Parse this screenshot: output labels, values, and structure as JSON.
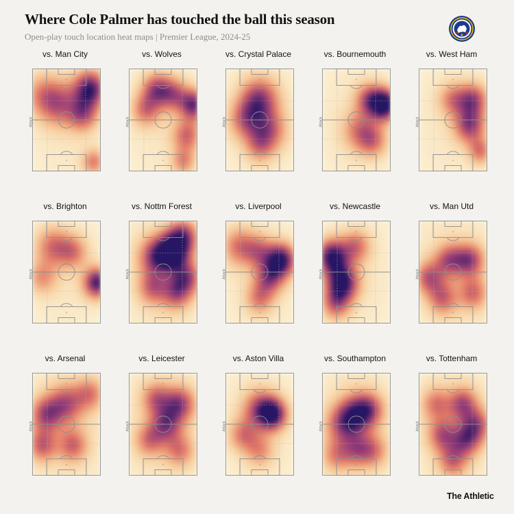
{
  "header": {
    "title": "Where Cole Palmer has touched the ball this season",
    "subtitle": "Open-play touch location heat maps | Premier League, 2024-25"
  },
  "brand": "The Athletic",
  "attack_label": "Attack",
  "colors": {
    "background": "#f3f2ee",
    "scale_low": "#f8e9a8",
    "scale_mid": "#e8876a",
    "scale_high": "#2a1668"
  },
  "crest_icon": "chelsea-crest-icon",
  "chart_data": {
    "type": "heatmap",
    "title": "Where Cole Palmer has touched the ball this season",
    "subtitle": "Open-play touch location heat maps | Premier League, 2024-25",
    "x_range": [
      0,
      1
    ],
    "y_range": [
      0,
      1
    ],
    "maps": [
      {
        "opponent": "vs. Man City",
        "blobs": [
          [
            0.5,
            0.5,
            0.55,
            0.6,
            0.15
          ],
          [
            0.85,
            0.2,
            0.17,
            0.85
          ],
          [
            0.4,
            0.35,
            0.2,
            0.45
          ],
          [
            0.75,
            0.45,
            0.15,
            0.5
          ],
          [
            0.9,
            0.9,
            0.12,
            0.45
          ],
          [
            0.15,
            0.25,
            0.2,
            0.35
          ]
        ]
      },
      {
        "opponent": "vs. Wolves",
        "blobs": [
          [
            0.5,
            0.5,
            0.55,
            0.6,
            0.15
          ],
          [
            0.95,
            0.35,
            0.14,
            0.75
          ],
          [
            0.4,
            0.2,
            0.15,
            0.55
          ],
          [
            0.25,
            0.4,
            0.15,
            0.45
          ],
          [
            0.65,
            0.25,
            0.15,
            0.5
          ],
          [
            0.85,
            0.65,
            0.15,
            0.5
          ],
          [
            0.8,
            0.9,
            0.12,
            0.4
          ]
        ]
      },
      {
        "opponent": "vs. Crystal Palace",
        "blobs": [
          [
            0.5,
            0.5,
            0.55,
            0.6,
            0.15
          ],
          [
            0.5,
            0.3,
            0.2,
            0.65
          ],
          [
            0.3,
            0.5,
            0.18,
            0.45
          ],
          [
            0.65,
            0.6,
            0.18,
            0.45
          ],
          [
            0.5,
            0.75,
            0.15,
            0.35
          ]
        ]
      },
      {
        "opponent": "vs. Bournemouth",
        "blobs": [
          [
            0.5,
            0.5,
            0.55,
            0.6,
            0.15
          ],
          [
            0.92,
            0.35,
            0.14,
            1.0
          ],
          [
            0.7,
            0.3,
            0.15,
            0.55
          ],
          [
            0.55,
            0.6,
            0.18,
            0.4
          ],
          [
            0.75,
            0.7,
            0.15,
            0.4
          ]
        ]
      },
      {
        "opponent": "vs. West Ham",
        "blobs": [
          [
            0.5,
            0.5,
            0.55,
            0.6,
            0.15
          ],
          [
            0.8,
            0.3,
            0.15,
            0.6
          ],
          [
            0.75,
            0.55,
            0.16,
            0.65
          ],
          [
            0.5,
            0.3,
            0.15,
            0.4
          ],
          [
            0.9,
            0.8,
            0.12,
            0.45
          ]
        ]
      },
      {
        "opponent": "vs. Brighton",
        "blobs": [
          [
            0.5,
            0.5,
            0.55,
            0.6,
            0.15
          ],
          [
            0.95,
            0.6,
            0.14,
            0.85
          ],
          [
            0.3,
            0.25,
            0.18,
            0.45
          ],
          [
            0.6,
            0.3,
            0.15,
            0.4
          ],
          [
            0.15,
            0.55,
            0.15,
            0.35
          ]
        ]
      },
      {
        "opponent": "vs. Nottm Forest",
        "blobs": [
          [
            0.5,
            0.5,
            0.55,
            0.6,
            0.2
          ],
          [
            0.65,
            0.3,
            0.16,
            0.95
          ],
          [
            0.4,
            0.35,
            0.18,
            0.6
          ],
          [
            0.8,
            0.15,
            0.15,
            0.6
          ],
          [
            0.85,
            0.55,
            0.15,
            0.55
          ],
          [
            0.7,
            0.7,
            0.15,
            0.5
          ],
          [
            0.35,
            0.65,
            0.15,
            0.45
          ]
        ]
      },
      {
        "opponent": "vs. Liverpool",
        "blobs": [
          [
            0.5,
            0.5,
            0.55,
            0.6,
            0.15
          ],
          [
            0.82,
            0.38,
            0.15,
            0.9
          ],
          [
            0.2,
            0.25,
            0.18,
            0.45
          ],
          [
            0.5,
            0.3,
            0.15,
            0.4
          ],
          [
            0.65,
            0.55,
            0.15,
            0.55
          ],
          [
            0.5,
            0.75,
            0.15,
            0.4
          ]
        ]
      },
      {
        "opponent": "vs. Newcastle",
        "blobs": [
          [
            0.5,
            0.5,
            0.55,
            0.6,
            0.15
          ],
          [
            0.15,
            0.35,
            0.16,
            0.9
          ],
          [
            0.3,
            0.6,
            0.16,
            0.9
          ],
          [
            0.5,
            0.25,
            0.15,
            0.45
          ],
          [
            0.2,
            0.8,
            0.15,
            0.5
          ]
        ]
      },
      {
        "opponent": "vs. Man Utd",
        "blobs": [
          [
            0.5,
            0.5,
            0.55,
            0.6,
            0.2
          ],
          [
            0.75,
            0.38,
            0.15,
            0.6
          ],
          [
            0.45,
            0.38,
            0.15,
            0.5
          ],
          [
            0.15,
            0.55,
            0.15,
            0.5
          ],
          [
            0.35,
            0.75,
            0.15,
            0.45
          ],
          [
            0.8,
            0.7,
            0.15,
            0.45
          ]
        ]
      },
      {
        "opponent": "vs. Arsenal",
        "blobs": [
          [
            0.5,
            0.5,
            0.55,
            0.6,
            0.2
          ],
          [
            0.2,
            0.4,
            0.16,
            0.55
          ],
          [
            0.5,
            0.3,
            0.18,
            0.5
          ],
          [
            0.15,
            0.7,
            0.15,
            0.5
          ],
          [
            0.6,
            0.7,
            0.15,
            0.45
          ],
          [
            0.85,
            0.2,
            0.15,
            0.4
          ]
        ]
      },
      {
        "opponent": "vs. Leicester",
        "blobs": [
          [
            0.5,
            0.5,
            0.55,
            0.6,
            0.2
          ],
          [
            0.75,
            0.3,
            0.16,
            0.6
          ],
          [
            0.55,
            0.5,
            0.16,
            0.55
          ],
          [
            0.3,
            0.65,
            0.15,
            0.4
          ],
          [
            0.75,
            0.75,
            0.15,
            0.4
          ],
          [
            0.4,
            0.25,
            0.15,
            0.45
          ]
        ]
      },
      {
        "opponent": "vs. Aston Villa",
        "blobs": [
          [
            0.5,
            0.5,
            0.55,
            0.6,
            0.15
          ],
          [
            0.7,
            0.4,
            0.14,
            0.85
          ],
          [
            0.5,
            0.35,
            0.18,
            0.55
          ],
          [
            0.25,
            0.6,
            0.15,
            0.4
          ],
          [
            0.5,
            0.75,
            0.15,
            0.35
          ]
        ]
      },
      {
        "opponent": "vs. Southampton",
        "blobs": [
          [
            0.5,
            0.5,
            0.55,
            0.6,
            0.2
          ],
          [
            0.5,
            0.4,
            0.18,
            0.6
          ],
          [
            0.3,
            0.5,
            0.18,
            0.45
          ],
          [
            0.7,
            0.35,
            0.15,
            0.45
          ],
          [
            0.5,
            0.75,
            0.15,
            0.4
          ],
          [
            0.75,
            0.75,
            0.15,
            0.4
          ],
          [
            0.2,
            0.8,
            0.15,
            0.35
          ]
        ]
      },
      {
        "opponent": "vs. Tottenham",
        "blobs": [
          [
            0.5,
            0.5,
            0.55,
            0.6,
            0.2
          ],
          [
            0.65,
            0.3,
            0.15,
            0.55
          ],
          [
            0.85,
            0.5,
            0.15,
            0.5
          ],
          [
            0.35,
            0.6,
            0.15,
            0.5
          ],
          [
            0.7,
            0.65,
            0.15,
            0.55
          ],
          [
            0.5,
            0.85,
            0.15,
            0.45
          ],
          [
            0.25,
            0.3,
            0.15,
            0.4
          ]
        ]
      }
    ]
  }
}
